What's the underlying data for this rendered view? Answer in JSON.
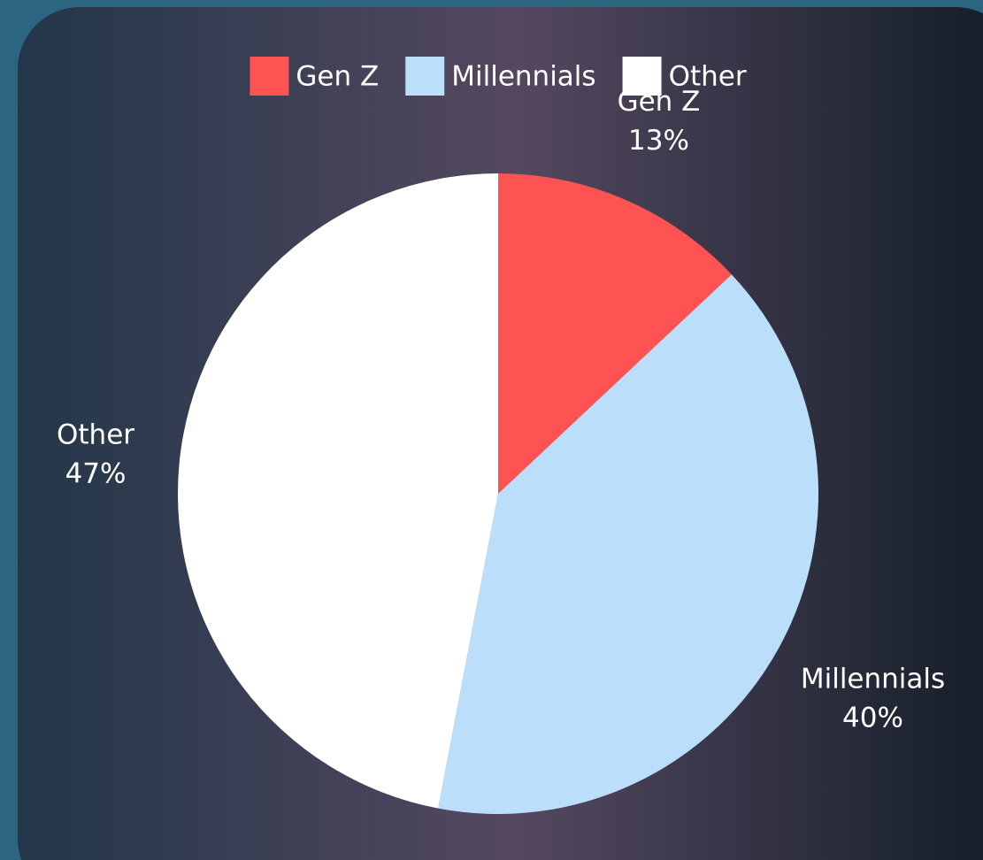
{
  "chart_data": {
    "type": "pie",
    "categories": [
      "Gen Z",
      "Millennials",
      "Other"
    ],
    "values": [
      13,
      40,
      47
    ],
    "value_labels": [
      "13%",
      "40%",
      "47%"
    ],
    "colors": [
      "#ff5252",
      "#bbdefb",
      "#ffffff"
    ],
    "legend": "top"
  }
}
